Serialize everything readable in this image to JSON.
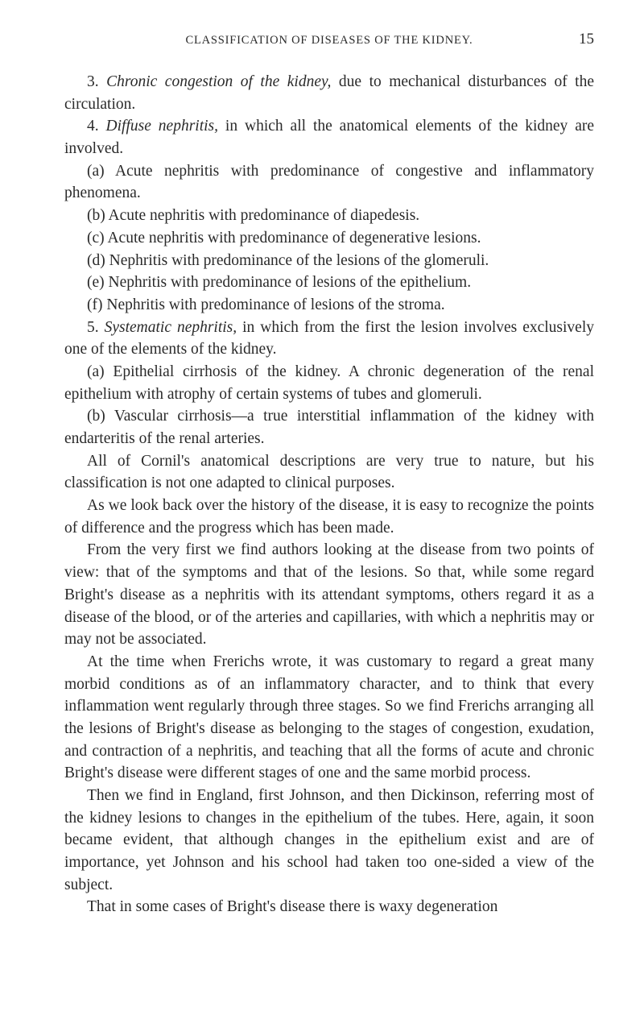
{
  "header": {
    "running_title": "CLASSIFICATION OF DISEASES OF THE KIDNEY.",
    "page_number": "15"
  },
  "body": {
    "p1_num": "3. ",
    "p1_em": "Chronic congestion of the kidney,",
    "p1_rest": " due to mechanical disturbances of the circulation.",
    "p2_num": "4. ",
    "p2_em": "Diffuse nephritis,",
    "p2_rest": " in which all the anatomical elements of the kidney are involved.",
    "pa_label": "(a) ",
    "pa_text": "Acute nephritis with predominance of congestive and inflammatory phenomena.",
    "pb_label": "(b) ",
    "pb_text": "Acute nephritis with predominance of diapedesis.",
    "pc_label": "(c) ",
    "pc_text": "Acute nephritis with predominance of degenerative lesions.",
    "pd_label": "(d) ",
    "pd_text": "Nephritis with predominance of the lesions of the glomeruli.",
    "pe_label": "(e) ",
    "pe_text": "Nephritis with predominance of lesions of the epithelium.",
    "pf_label": "(f) ",
    "pf_text": "Nephritis with predominance of lesions of the stroma.",
    "p5_num": "5. ",
    "p5_em": "Systematic nephritis,",
    "p5_rest": " in which from the first the lesion involves exclusively one of the elements of the kidney.",
    "p5a_label": "(a) ",
    "p5a_text": "Epithelial cirrhosis of the kidney. A chronic degeneration of the renal epithelium with atrophy of certain systems of tubes and glomeruli.",
    "p5b_label": "(b) ",
    "p5b_text": "Vascular cirrhosis—a true interstitial inflammation of the kidney with endarteritis of the renal arteries.",
    "p6": "All of Cornil's anatomical descriptions are very true to nature, but his classification is not one adapted to clinical purposes.",
    "p7": "As we look back over the history of the disease, it is easy to recognize the points of difference and the progress which has been made.",
    "p8": "From the very first we find authors looking at the disease from two points of view: that of the symptoms and that of the lesions. So that, while some regard Bright's disease as a nephritis with its attendant symptoms, others regard it as a disease of the blood, or of the arteries and capillaries, with which a nephritis may or may not be associated.",
    "p9": "At the time when Frerichs wrote, it was customary to regard a great many morbid conditions as of an inflammatory character, and to think that every inflammation went regularly through three stages. So we find Frerichs arranging all the lesions of Bright's disease as belonging to the stages of congestion, exudation, and contraction of a nephritis, and teaching that all the forms of acute and chronic Bright's disease were different stages of one and the same morbid process.",
    "p10": "Then we find in England, first Johnson, and then Dickinson, referring most of the kidney lesions to changes in the epithelium of the tubes. Here, again, it soon became evident, that although changes in the epithelium exist and are of importance, yet Johnson and his school had taken too one-sided a view of the subject.",
    "p11": "That in some cases of Bright's disease there is waxy degeneration"
  }
}
